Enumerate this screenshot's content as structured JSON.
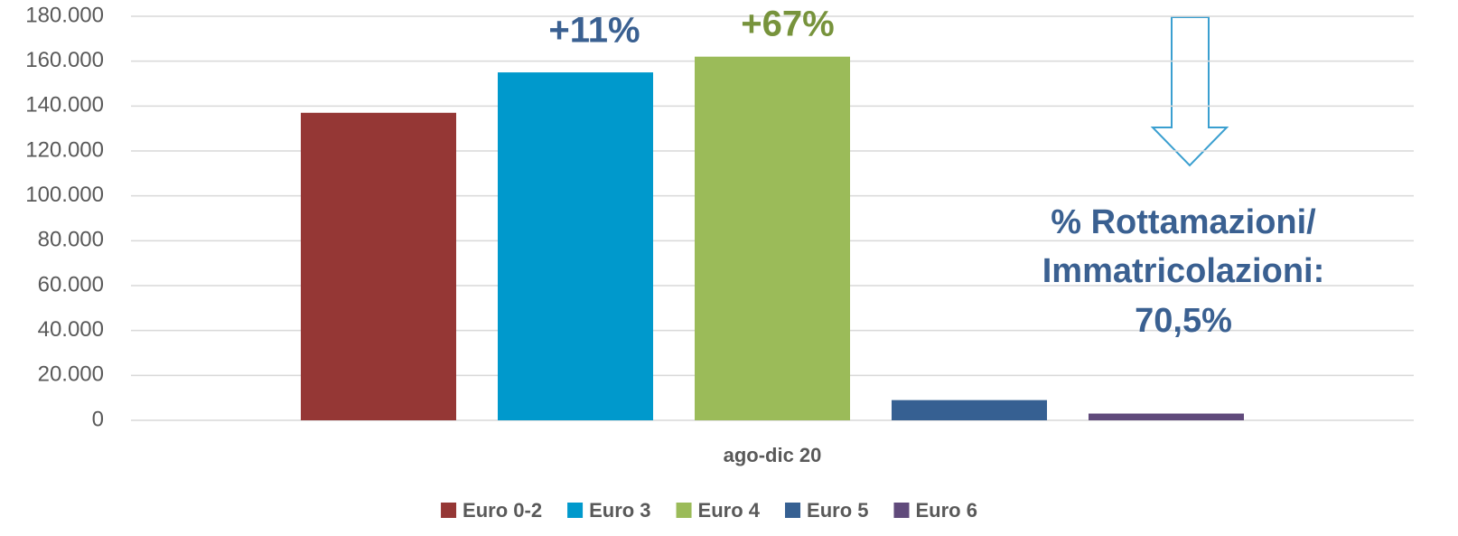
{
  "chart_data": {
    "type": "bar",
    "categories": [
      "ago-dic 20"
    ],
    "series": [
      {
        "name": "Euro 0-2",
        "color": "#953735",
        "values": [
          137000
        ]
      },
      {
        "name": "Euro 3",
        "color": "#0099cc",
        "values": [
          155000
        ]
      },
      {
        "name": "Euro 4",
        "color": "#9bbb59",
        "values": [
          162000
        ]
      },
      {
        "name": "Euro 5",
        "color": "#366092",
        "values": [
          9000
        ]
      },
      {
        "name": "Euro 6",
        "color": "#604a7b",
        "values": [
          3000
        ]
      }
    ],
    "ylim": [
      0,
      180000
    ],
    "yticks": [
      0,
      {
        "value": 20000,
        "label": "20.000"
      },
      {
        "value": 40000,
        "label": "40.000"
      },
      {
        "value": 60000,
        "label": "60.000"
      },
      {
        "value": 80000,
        "label": "80.000"
      },
      {
        "value": 100000,
        "label": "100.000"
      },
      {
        "value": 120000,
        "label": "120.000"
      },
      {
        "value": 140000,
        "label": "140.000"
      },
      {
        "value": 160000,
        "label": "160.000"
      },
      {
        "value": 180000,
        "label": "180.000"
      }
    ],
    "grid": true,
    "legend": "bottom",
    "annotations": [
      {
        "text": "+11%",
        "color": "#3a6091"
      },
      {
        "text": "+67%",
        "color": "#77933c"
      },
      {
        "text": "% Rottamazioni/",
        "color": "#3a6091"
      },
      {
        "text": "Immatricolazioni:",
        "color": "#3a6091"
      },
      {
        "text": "70,5%",
        "color": "#3a6091"
      }
    ]
  }
}
